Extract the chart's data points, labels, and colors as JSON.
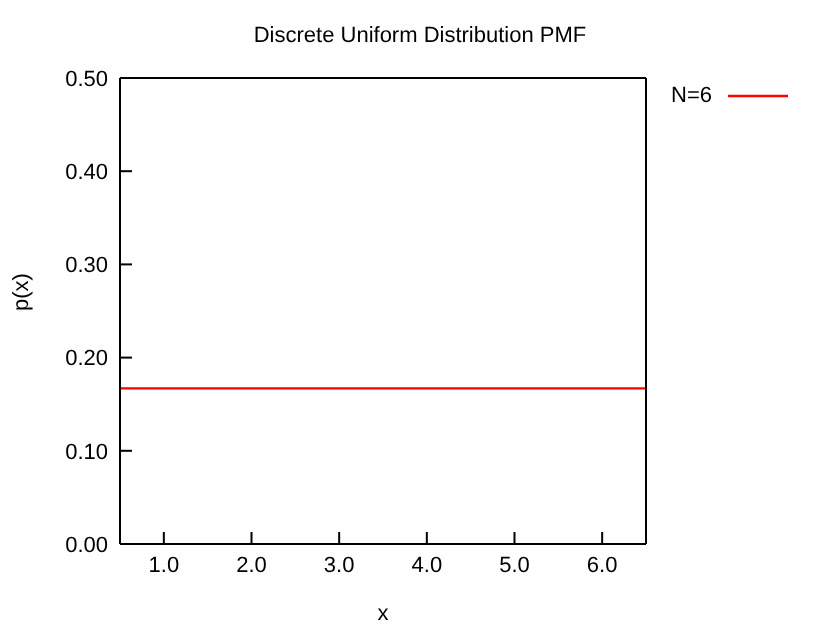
{
  "chart_data": {
    "type": "line",
    "title": "Discrete Uniform Distribution PMF",
    "xlabel": "x",
    "ylabel": "p(x)",
    "x": [
      0.5,
      6.5
    ],
    "series": [
      {
        "name": "N=6",
        "color": "#ff0000",
        "values": [
          0.167,
          0.167
        ]
      }
    ],
    "xlim": [
      0.5,
      6.5
    ],
    "xticks": [
      {
        "value": 1,
        "label": "1.0"
      },
      {
        "value": 2,
        "label": "2.0"
      },
      {
        "value": 3,
        "label": "3.0"
      },
      {
        "value": 4,
        "label": "4.0"
      },
      {
        "value": 5,
        "label": "5.0"
      },
      {
        "value": 6,
        "label": "6.0"
      }
    ],
    "ylim": [
      0,
      0.5
    ],
    "yticks": [
      {
        "value": 0,
        "label": "0.00"
      },
      {
        "value": 0.1,
        "label": "0.10"
      },
      {
        "value": 0.2,
        "label": "0.20"
      },
      {
        "value": 0.3,
        "label": "0.30"
      },
      {
        "value": 0.4,
        "label": "0.40"
      },
      {
        "value": 0.5,
        "label": "0.50"
      }
    ],
    "legend": "top right",
    "marker": "none",
    "line_style": "solid"
  }
}
